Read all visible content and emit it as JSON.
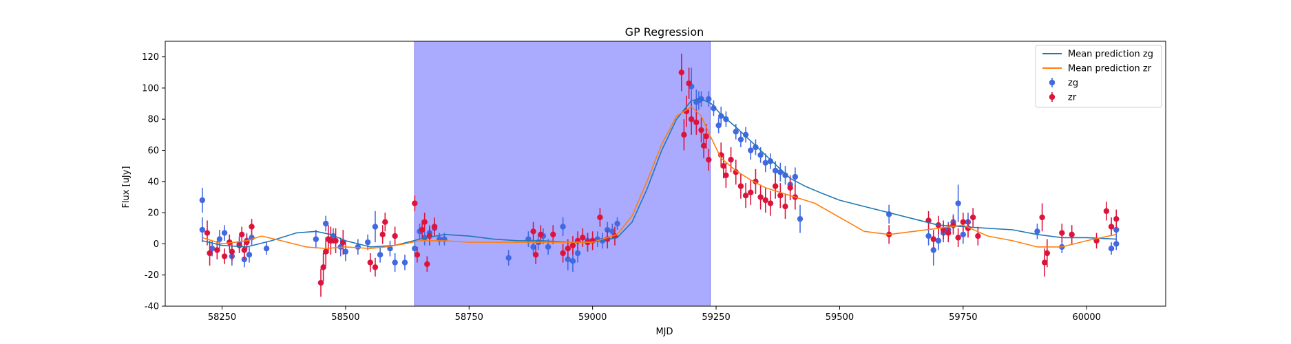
{
  "chart_data": {
    "type": "scatter",
    "title": "GP Regression",
    "xlabel": "MJD",
    "ylabel": "Flux [uJy]",
    "xlim": [
      58135,
      60160
    ],
    "ylim": [
      -40,
      130
    ],
    "x_ticks": [
      58250,
      58500,
      58750,
      59000,
      59250,
      59500,
      59750,
      60000
    ],
    "y_ticks": [
      -40,
      -20,
      0,
      20,
      40,
      60,
      80,
      100,
      120
    ],
    "grid": false,
    "legend_position": "upper right",
    "shaded_region": {
      "x_start": 58640,
      "x_end": 59238,
      "color": "#aaaaff"
    },
    "series": [
      {
        "name": "Mean prediction zg",
        "kind": "line",
        "color": "#1f77b4",
        "x": [
          58210,
          58250,
          58300,
          58350,
          58400,
          58440,
          58470,
          58500,
          58550,
          58600,
          58650,
          58700,
          58750,
          58800,
          58850,
          58900,
          58950,
          59000,
          59050,
          59080,
          59110,
          59140,
          59170,
          59200,
          59220,
          59240,
          59260,
          59290,
          59320,
          59350,
          59380,
          59400,
          59430,
          59460,
          59500,
          59550,
          59600,
          59650,
          59700,
          59750,
          59800,
          59850,
          59900,
          59950,
          60000,
          60060
        ],
        "y": [
          2,
          -1,
          -2,
          2,
          7,
          8,
          6,
          2,
          -2,
          -1,
          3,
          6,
          5,
          3,
          2,
          2,
          1,
          1,
          4,
          14,
          35,
          60,
          80,
          92,
          93,
          90,
          83,
          75,
          66,
          57,
          48,
          42,
          37,
          33,
          28,
          24,
          20,
          16,
          12,
          11,
          10,
          9,
          6,
          4,
          4,
          3
        ]
      },
      {
        "name": "Mean prediction zr",
        "kind": "line",
        "color": "#ff7f0e",
        "x": [
          58210,
          58250,
          58300,
          58330,
          58370,
          58420,
          58460,
          58500,
          58550,
          58580,
          58620,
          58650,
          58700,
          58750,
          58800,
          58850,
          58900,
          58950,
          59000,
          59050,
          59080,
          59110,
          59140,
          59170,
          59200,
          59220,
          59240,
          59260,
          59290,
          59320,
          59350,
          59380,
          59410,
          59450,
          59500,
          59550,
          59600,
          59650,
          59700,
          59750,
          59800,
          59850,
          59900,
          59950,
          60000,
          60060
        ],
        "y": [
          4,
          0,
          2,
          5,
          2,
          -2,
          -3,
          -2,
          -3,
          -2,
          0,
          2,
          2,
          1,
          1,
          1,
          1,
          1,
          1,
          6,
          18,
          40,
          64,
          82,
          88,
          82,
          68,
          55,
          47,
          41,
          36,
          33,
          30,
          26,
          17,
          8,
          6,
          8,
          10,
          12,
          5,
          2,
          -2,
          -2,
          2,
          6
        ]
      },
      {
        "name": "zg",
        "kind": "errorbar",
        "color": "#4169e1",
        "points": [
          [
            58210,
            28,
            8
          ],
          [
            58210,
            9,
            8
          ],
          [
            58230,
            -3,
            5
          ],
          [
            58245,
            3,
            6
          ],
          [
            58255,
            7,
            5
          ],
          [
            58270,
            -8,
            6
          ],
          [
            58285,
            0,
            5
          ],
          [
            58295,
            -10,
            5
          ],
          [
            58300,
            2,
            5
          ],
          [
            58305,
            -7,
            5
          ],
          [
            58310,
            4,
            5
          ],
          [
            58340,
            -3,
            4
          ],
          [
            58440,
            3,
            6
          ],
          [
            58460,
            13,
            5
          ],
          [
            58475,
            5,
            5
          ],
          [
            58490,
            -2,
            6
          ],
          [
            58500,
            -5,
            6
          ],
          [
            58525,
            -2,
            5
          ],
          [
            58545,
            1,
            5
          ],
          [
            58560,
            11,
            10
          ],
          [
            58570,
            -7,
            5
          ],
          [
            58590,
            -3,
            5
          ],
          [
            58600,
            -12,
            6
          ],
          [
            58620,
            -12,
            5
          ],
          [
            58640,
            -3,
            5
          ],
          [
            58650,
            8,
            5
          ],
          [
            58660,
            4,
            5
          ],
          [
            58670,
            7,
            5
          ],
          [
            58680,
            10,
            5
          ],
          [
            58690,
            3,
            4
          ],
          [
            58700,
            3,
            4
          ],
          [
            58830,
            -9,
            5
          ],
          [
            58870,
            3,
            5
          ],
          [
            58880,
            -2,
            5
          ],
          [
            58890,
            1,
            5
          ],
          [
            58900,
            5,
            5
          ],
          [
            58910,
            -2,
            5
          ],
          [
            58940,
            11,
            6
          ],
          [
            58950,
            -10,
            7
          ],
          [
            58960,
            -11,
            7
          ],
          [
            58970,
            -6,
            6
          ],
          [
            58990,
            2,
            5
          ],
          [
            59010,
            3,
            5
          ],
          [
            59020,
            2,
            5
          ],
          [
            59030,
            9,
            5
          ],
          [
            59040,
            8,
            5
          ],
          [
            59050,
            13,
            4
          ],
          [
            59200,
            101,
            12
          ],
          [
            59210,
            91,
            8
          ],
          [
            59215,
            92,
            6
          ],
          [
            59220,
            93,
            5
          ],
          [
            59235,
            93,
            5
          ],
          [
            59245,
            87,
            5
          ],
          [
            59255,
            76,
            5
          ],
          [
            59260,
            82,
            6
          ],
          [
            59270,
            80,
            5
          ],
          [
            59290,
            72,
            5
          ],
          [
            59300,
            67,
            5
          ],
          [
            59310,
            70,
            5
          ],
          [
            59320,
            60,
            6
          ],
          [
            59330,
            62,
            5
          ],
          [
            59340,
            57,
            5
          ],
          [
            59350,
            52,
            6
          ],
          [
            59360,
            53,
            5
          ],
          [
            59370,
            47,
            6
          ],
          [
            59380,
            46,
            6
          ],
          [
            59390,
            44,
            6
          ],
          [
            59400,
            38,
            5
          ],
          [
            59410,
            43,
            6
          ],
          [
            59420,
            16,
            9
          ],
          [
            59600,
            19,
            6
          ],
          [
            59680,
            5,
            6
          ],
          [
            59690,
            -4,
            10
          ],
          [
            59700,
            2,
            6
          ],
          [
            59710,
            7,
            6
          ],
          [
            59720,
            9,
            5
          ],
          [
            59730,
            14,
            5
          ],
          [
            59740,
            26,
            12
          ],
          [
            59750,
            6,
            6
          ],
          [
            59760,
            14,
            6
          ],
          [
            59900,
            8,
            5
          ],
          [
            59950,
            -2,
            4
          ],
          [
            60050,
            -3,
            4
          ],
          [
            60060,
            0,
            4
          ],
          [
            60060,
            9,
            5
          ]
        ]
      },
      {
        "name": "zr",
        "kind": "errorbar",
        "color": "#dc143c",
        "points": [
          [
            58220,
            7,
            8
          ],
          [
            58225,
            -6,
            8
          ],
          [
            58240,
            -4,
            6
          ],
          [
            58255,
            -8,
            5
          ],
          [
            58265,
            1,
            5
          ],
          [
            58270,
            -5,
            6
          ],
          [
            58285,
            -1,
            5
          ],
          [
            58290,
            6,
            5
          ],
          [
            58295,
            -4,
            6
          ],
          [
            58300,
            1,
            5
          ],
          [
            58310,
            11,
            5
          ],
          [
            58450,
            -25,
            9
          ],
          [
            58455,
            -15,
            9
          ],
          [
            58460,
            -5,
            9
          ],
          [
            58465,
            3,
            9
          ],
          [
            58470,
            2,
            9
          ],
          [
            58480,
            2,
            8
          ],
          [
            58495,
            1,
            8
          ],
          [
            58550,
            -12,
            6
          ],
          [
            58560,
            -15,
            6
          ],
          [
            58575,
            6,
            6
          ],
          [
            58580,
            14,
            6
          ],
          [
            58600,
            5,
            6
          ],
          [
            58640,
            26,
            5
          ],
          [
            58645,
            -7,
            5
          ],
          [
            58655,
            9,
            6
          ],
          [
            58660,
            14,
            6
          ],
          [
            58665,
            -13,
            5
          ],
          [
            58670,
            5,
            6
          ],
          [
            58680,
            11,
            6
          ],
          [
            58880,
            8,
            6
          ],
          [
            58885,
            -7,
            6
          ],
          [
            58895,
            6,
            6
          ],
          [
            58920,
            6,
            6
          ],
          [
            58940,
            -6,
            6
          ],
          [
            58950,
            -3,
            6
          ],
          [
            58960,
            -1,
            6
          ],
          [
            58970,
            2,
            6
          ],
          [
            58980,
            4,
            6
          ],
          [
            58990,
            1,
            6
          ],
          [
            59000,
            2,
            6
          ],
          [
            59015,
            17,
            6
          ],
          [
            59030,
            3,
            6
          ],
          [
            59045,
            5,
            6
          ],
          [
            59180,
            110,
            12
          ],
          [
            59185,
            70,
            10
          ],
          [
            59190,
            85,
            10
          ],
          [
            59195,
            103,
            10
          ],
          [
            59200,
            80,
            10
          ],
          [
            59210,
            78,
            8
          ],
          [
            59220,
            73,
            8
          ],
          [
            59225,
            63,
            8
          ],
          [
            59230,
            69,
            8
          ],
          [
            59235,
            54,
            7
          ],
          [
            59260,
            57,
            8
          ],
          [
            59265,
            50,
            8
          ],
          [
            59270,
            44,
            8
          ],
          [
            59280,
            54,
            8
          ],
          [
            59290,
            46,
            8
          ],
          [
            59300,
            37,
            8
          ],
          [
            59310,
            31,
            8
          ],
          [
            59320,
            33,
            8
          ],
          [
            59330,
            40,
            8
          ],
          [
            59340,
            30,
            8
          ],
          [
            59350,
            28,
            8
          ],
          [
            59360,
            26,
            8
          ],
          [
            59370,
            37,
            8
          ],
          [
            59380,
            31,
            8
          ],
          [
            59390,
            24,
            8
          ],
          [
            59400,
            36,
            8
          ],
          [
            59410,
            30,
            8
          ],
          [
            59600,
            6,
            6
          ],
          [
            59680,
            15,
            6
          ],
          [
            59690,
            3,
            6
          ],
          [
            59700,
            12,
            6
          ],
          [
            59710,
            9,
            6
          ],
          [
            59720,
            7,
            6
          ],
          [
            59730,
            12,
            6
          ],
          [
            59740,
            4,
            6
          ],
          [
            59750,
            14,
            6
          ],
          [
            59760,
            10,
            6
          ],
          [
            59770,
            17,
            6
          ],
          [
            59780,
            5,
            6
          ],
          [
            59910,
            17,
            9
          ],
          [
            59915,
            -12,
            9
          ],
          [
            59920,
            -6,
            9
          ],
          [
            59950,
            7,
            6
          ],
          [
            59970,
            6,
            6
          ],
          [
            60020,
            2,
            5
          ],
          [
            60040,
            21,
            6
          ],
          [
            60050,
            11,
            6
          ],
          [
            60060,
            16,
            6
          ]
        ]
      }
    ]
  }
}
